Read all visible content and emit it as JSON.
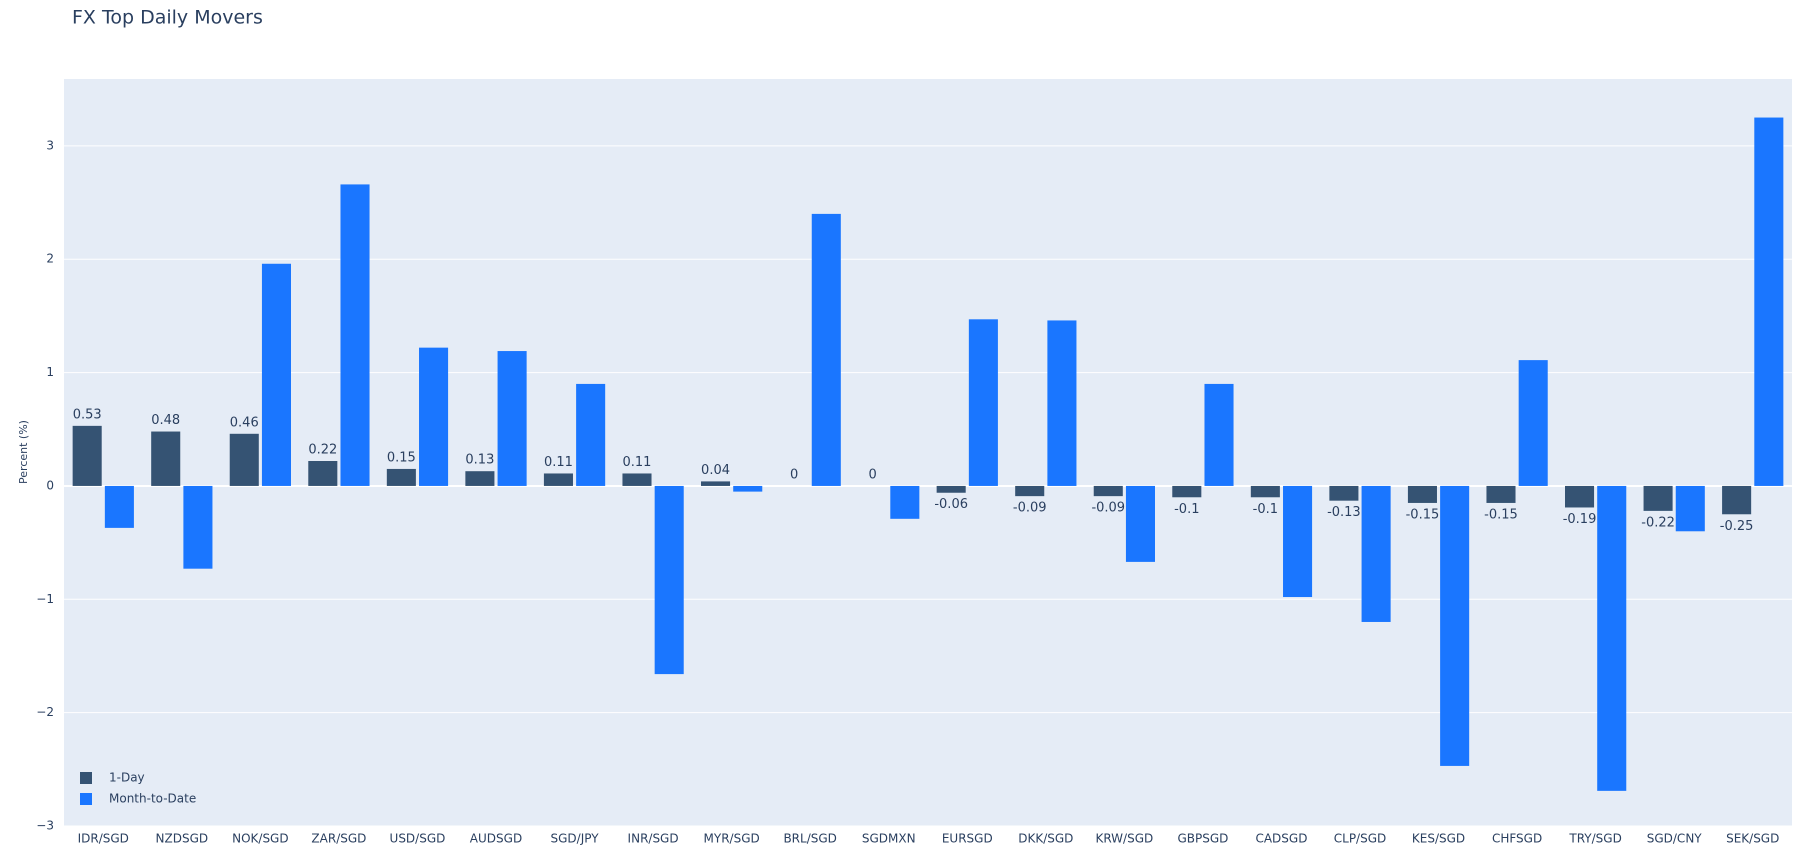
{
  "chart_data": {
    "type": "bar",
    "title": "FX Top Daily Movers",
    "y_label": "Percent (%)",
    "categories": [
      "IDR/SGD",
      "NZDSGD",
      "NOK/SGD",
      "ZAR/SGD",
      "USD/SGD",
      "AUDSGD",
      "SGD/JPY",
      "INR/SGD",
      "MYR/SGD",
      "BRL/SGD",
      "SGDMXN",
      "EURSGD",
      "DKK/SGD",
      "KRW/SGD",
      "GBPSGD",
      "CADSGD",
      "CLP/SGD",
      "KES/SGD",
      "CHFSGD",
      "TRY/SGD",
      "SGD/CNY",
      "SEK/SGD"
    ],
    "series": [
      {
        "name": "1-Day",
        "color": "#355373",
        "show_labels": true,
        "values": [
          0.53,
          0.48,
          0.46,
          0.22,
          0.15,
          0.13,
          0.11,
          0.11,
          0.04,
          0,
          0,
          -0.06,
          -0.09,
          -0.09,
          -0.1,
          -0.1,
          -0.13,
          -0.15,
          -0.15,
          -0.19,
          -0.22,
          -0.25
        ]
      },
      {
        "name": "Month-to-Date",
        "color": "#1a76ff",
        "show_labels": false,
        "values": [
          -0.37,
          -0.73,
          1.96,
          2.66,
          1.22,
          1.19,
          0.9,
          -1.66,
          -0.05,
          2.4,
          -0.29,
          1.47,
          1.46,
          -0.67,
          0.9,
          -0.98,
          -1.2,
          -2.47,
          1.11,
          -2.69,
          -0.4,
          3.25
        ]
      }
    ],
    "ylim": [
      -3,
      3.59
    ],
    "yticks": [
      {
        "value": -3,
        "label": "−3"
      },
      {
        "value": -2,
        "label": "−2"
      },
      {
        "value": -1,
        "label": "−1"
      },
      0,
      1,
      2,
      3
    ],
    "grid": true,
    "legend": "bottom-left"
  }
}
